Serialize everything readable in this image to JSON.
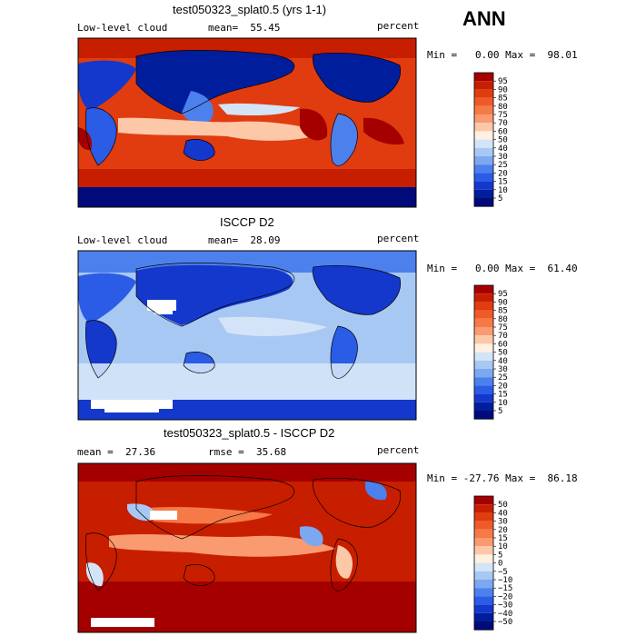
{
  "season": "ANN",
  "panels": [
    {
      "title": "test050323_splat0.5 (yrs 1-1)",
      "left_label": "Low-level cloud",
      "mid_label": "mean=  55.45",
      "units": "percent",
      "minmax": "Min =   0.00 Max =  98.01",
      "colorbar": [
        "95",
        "90",
        "85",
        "80",
        "75",
        "70",
        "60",
        "50",
        "40",
        "30",
        "25",
        "20",
        "15",
        "10",
        "5"
      ],
      "colors": [
        "#a50000",
        "#c81e00",
        "#e03c10",
        "#f05a28",
        "#f57a48",
        "#fa9a70",
        "#fcc8a8",
        "#fff0e0",
        "#d4e4f8",
        "#a8c8f4",
        "#7ca8f0",
        "#4c80ec",
        "#2a5ce6",
        "#1438cc",
        "#001e9c",
        "#000a7a"
      ]
    },
    {
      "title": "ISCCP D2",
      "left_label": "Low-level cloud",
      "mid_label": "mean=  28.09",
      "units": "percent",
      "minmax": "Min =   0.00 Max =  61.40",
      "colorbar": [
        "95",
        "90",
        "85",
        "80",
        "75",
        "70",
        "60",
        "50",
        "40",
        "30",
        "25",
        "20",
        "15",
        "10",
        "5"
      ],
      "colors": [
        "#a50000",
        "#c81e00",
        "#e03c10",
        "#f05a28",
        "#f57a48",
        "#fa9a70",
        "#fcc8a8",
        "#fff0e0",
        "#d4e4f8",
        "#a8c8f4",
        "#7ca8f0",
        "#4c80ec",
        "#2a5ce6",
        "#1438cc",
        "#001e9c",
        "#000a7a"
      ]
    },
    {
      "title": "test050323_splat0.5 - ISCCP D2",
      "left_label": "mean =  27.36",
      "mid_label": "rmse =  35.68",
      "units": "percent",
      "minmax": "Min = -27.76 Max =  86.18",
      "colorbar": [
        "50",
        "40",
        "30",
        "20",
        "15",
        "10",
        "5",
        "0",
        "−5",
        "−10",
        "−15",
        "−20",
        "−30",
        "−40",
        "−50"
      ],
      "colors": [
        "#a50000",
        "#c81e00",
        "#e03c10",
        "#f05a28",
        "#f57a48",
        "#fa9a70",
        "#fcc8a8",
        "#fff0e0",
        "#d4e4f8",
        "#a8c8f4",
        "#7ca8f0",
        "#4c80ec",
        "#2a5ce6",
        "#1438cc",
        "#001e9c",
        "#000a7a"
      ]
    }
  ],
  "chart_data": [
    {
      "type": "heatmap",
      "title": "test050323_splat0.5 (yrs 1-1)",
      "variable": "Low-level cloud",
      "units": "percent",
      "mean": 55.45,
      "min": 0.0,
      "max": 98.01,
      "levels": [
        5,
        10,
        15,
        20,
        25,
        30,
        40,
        50,
        60,
        70,
        75,
        80,
        85,
        90,
        95
      ]
    },
    {
      "type": "heatmap",
      "title": "ISCCP D2",
      "variable": "Low-level cloud",
      "units": "percent",
      "mean": 28.09,
      "min": 0.0,
      "max": 61.4,
      "levels": [
        5,
        10,
        15,
        20,
        25,
        30,
        40,
        50,
        60,
        70,
        75,
        80,
        85,
        90,
        95
      ]
    },
    {
      "type": "heatmap",
      "title": "test050323_splat0.5 - ISCCP D2",
      "units": "percent",
      "mean": 27.36,
      "rmse": 35.68,
      "min": -27.76,
      "max": 86.18,
      "levels": [
        -50,
        -40,
        -30,
        -20,
        -15,
        -10,
        -5,
        0,
        5,
        10,
        15,
        20,
        30,
        40,
        50
      ]
    }
  ]
}
